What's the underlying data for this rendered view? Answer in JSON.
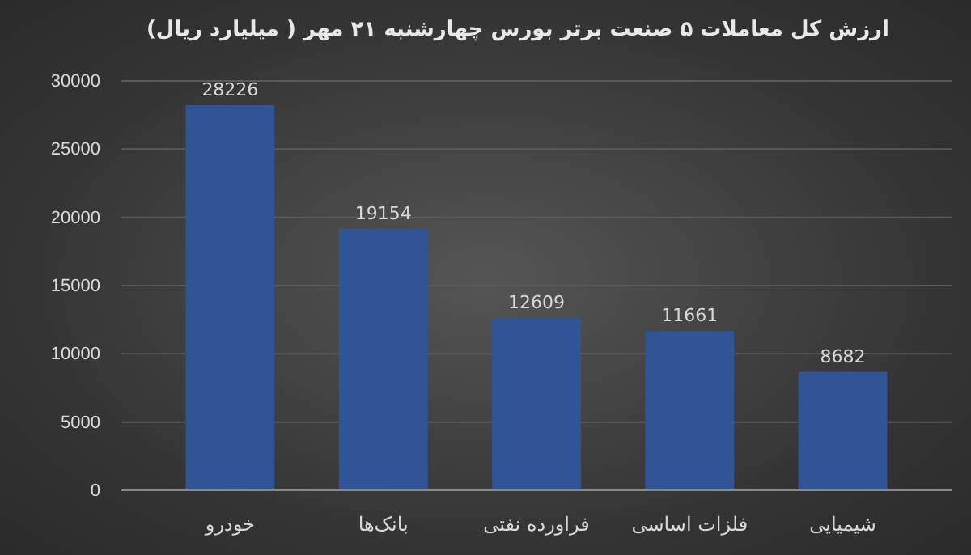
{
  "chart_data": {
    "type": "bar",
    "title": "ارزش کل معاملات ۵ صنعت برتر بورس چهارشنبه ۲۱ مهر ( میلیارد ریال)",
    "categories": [
      "خودرو",
      "بانک‌ها",
      "فراورده نفتی",
      "فلزات اساسی",
      "شیمیایی"
    ],
    "values": [
      28226,
      19154,
      12609,
      11661,
      8682
    ],
    "color": "#2f5597",
    "ylim": [
      0,
      30000
    ],
    "yticks": [
      0,
      5000,
      10000,
      15000,
      20000,
      25000,
      30000
    ],
    "grid": "y",
    "data_labels": true
  }
}
